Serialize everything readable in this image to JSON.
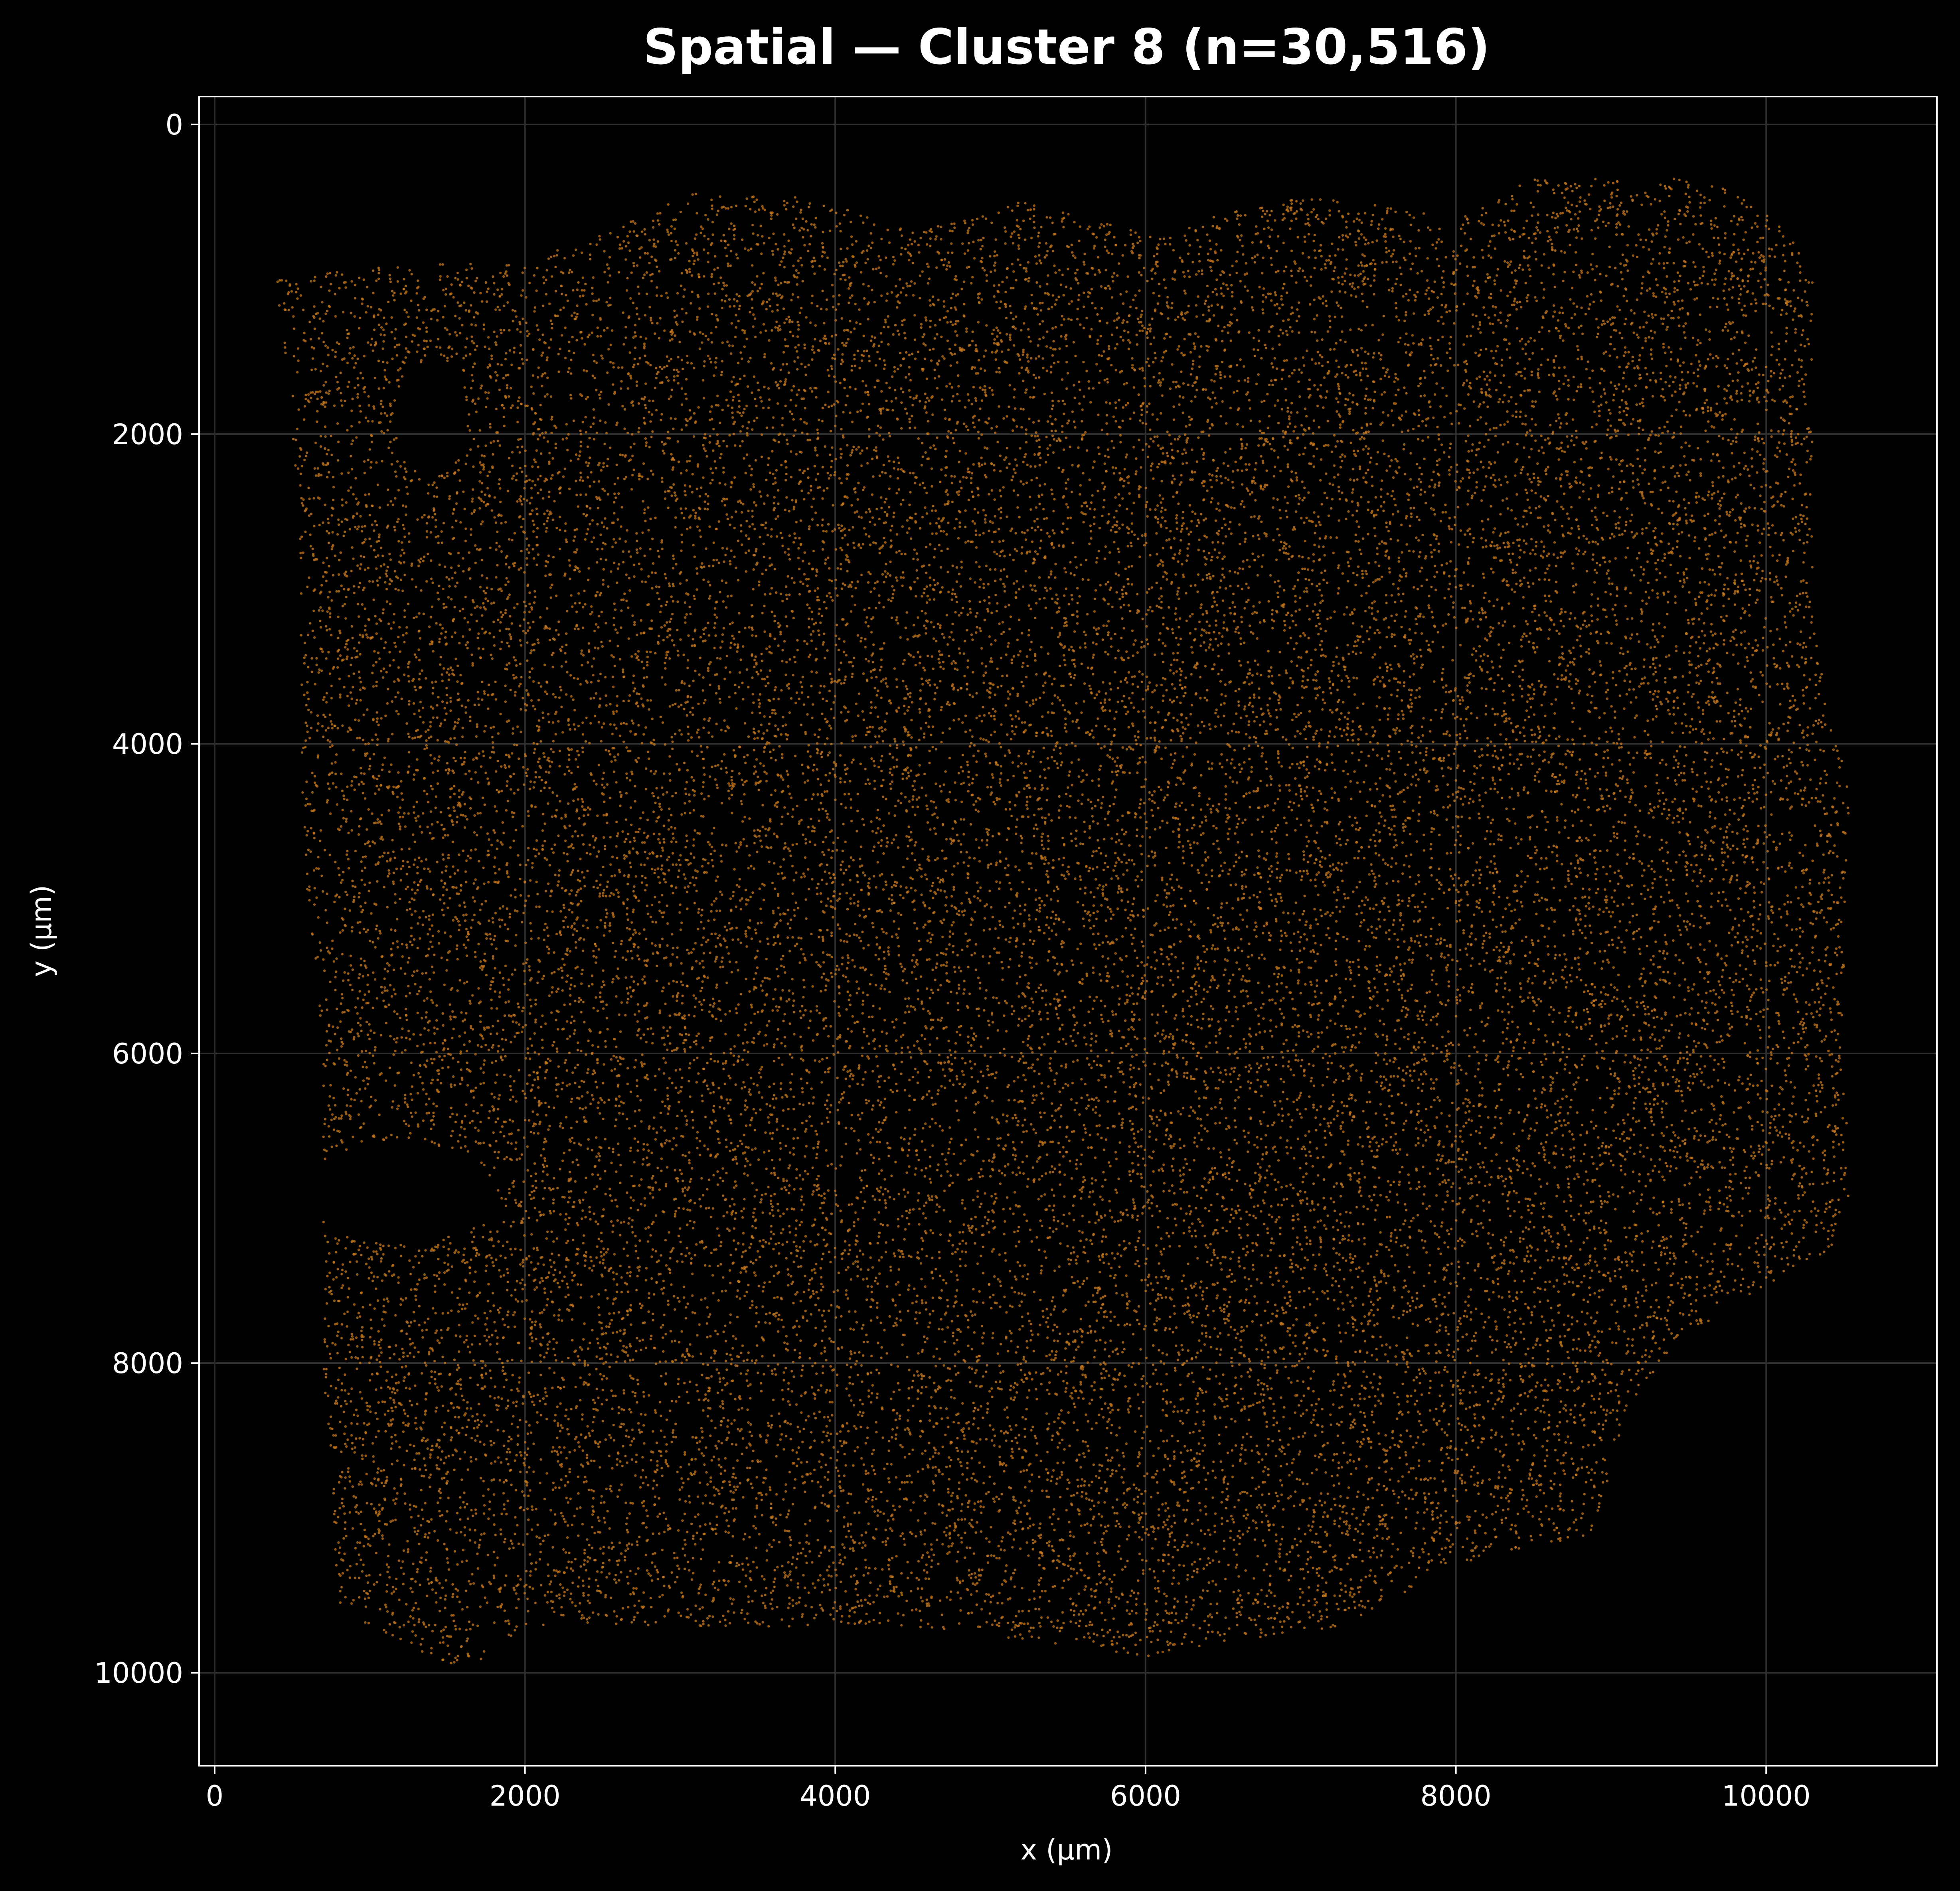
{
  "chart_data": {
    "type": "scatter",
    "title": "Spatial — Cluster 8 (n=30,516)",
    "xlabel": "x (µm)",
    "ylabel": "y (µm)",
    "xlim": [
      -100,
      11100
    ],
    "ylim": [
      10600,
      -180
    ],
    "y_inverted": true,
    "x_ticks": [
      0,
      2000,
      4000,
      6000,
      8000,
      10000
    ],
    "x_tick_labels": [
      "0",
      "2000",
      "4000",
      "6000",
      "8000",
      "10000"
    ],
    "y_ticks": [
      0,
      2000,
      4000,
      6000,
      8000,
      10000
    ],
    "y_tick_labels": [
      "0",
      "2000",
      "4000",
      "6000",
      "8000",
      "10000"
    ],
    "grid": true,
    "legend": "none",
    "point_count": 30516,
    "point_color": "#c8791e",
    "point_alpha": 0.75,
    "tissue_region": {
      "description_points_follow_outline": true,
      "outline": [
        [
          400,
          1000
        ],
        [
          1200,
          900
        ],
        [
          2000,
          900
        ],
        [
          3200,
          400
        ],
        [
          4000,
          500
        ],
        [
          4500,
          700
        ],
        [
          5200,
          500
        ],
        [
          6000,
          700
        ],
        [
          7000,
          450
        ],
        [
          8000,
          600
        ],
        [
          8500,
          350
        ],
        [
          9400,
          350
        ],
        [
          9900,
          450
        ],
        [
          10300,
          900
        ],
        [
          10300,
          1800
        ],
        [
          10300,
          3200
        ],
        [
          10450,
          4000
        ],
        [
          10550,
          4300
        ],
        [
          10500,
          5200
        ],
        [
          10500,
          6200
        ],
        [
          10550,
          6900
        ],
        [
          10400,
          7300
        ],
        [
          9800,
          7600
        ],
        [
          9400,
          7900
        ],
        [
          9100,
          8300
        ],
        [
          8900,
          9100
        ],
        [
          8000,
          9300
        ],
        [
          7300,
          9700
        ],
        [
          6500,
          9800
        ],
        [
          6000,
          9900
        ],
        [
          5300,
          9800
        ],
        [
          4500,
          9700
        ],
        [
          3000,
          9700
        ],
        [
          2000,
          9700
        ],
        [
          1600,
          10000
        ],
        [
          800,
          9600
        ],
        [
          700,
          8000
        ],
        [
          700,
          6000
        ],
        [
          600,
          5000
        ],
        [
          550,
          4000
        ],
        [
          550,
          2500
        ],
        [
          450,
          1500
        ]
      ],
      "holes": [
        {
          "cx": 1400,
          "cy": 1900,
          "rx": 230,
          "ry": 380
        },
        {
          "cx": 1200,
          "cy": 6900,
          "rx": 600,
          "ry": 330
        }
      ]
    }
  },
  "colors": {
    "background": "#000000",
    "axes_edge": "#ffffff",
    "grid": "#2f2f2f",
    "text": "#ffffff",
    "points": "#c8791e"
  }
}
